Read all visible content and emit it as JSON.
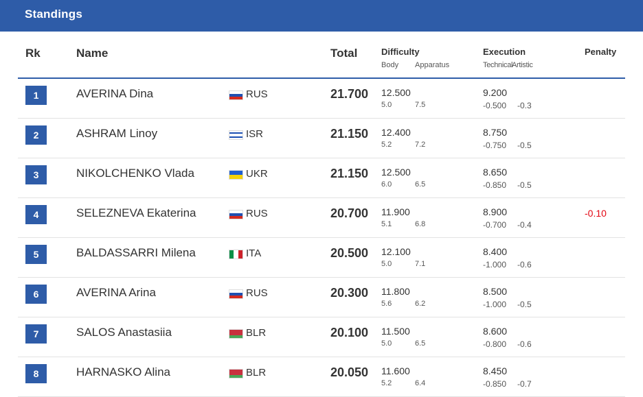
{
  "header": {
    "title": "Standings"
  },
  "columns": {
    "rk": "Rk",
    "name": "Name",
    "total": "Total",
    "difficulty": "Difficulty",
    "body": "Body",
    "apparatus": "Apparatus",
    "execution": "Execution",
    "technical": "Technical",
    "artistic": "Artistic",
    "penalty": "Penalty"
  },
  "colors": {
    "header_bg": "#2e5ca8",
    "rank_bg": "#2e5ca8",
    "penalty": "#e30613"
  },
  "rows": [
    {
      "rank": "1",
      "name": "AVERINA Dina",
      "country": "RUS",
      "flag": "rus-flag",
      "total": "21.700",
      "difficulty": "12.500",
      "body": "5.0",
      "apparatus": "7.5",
      "execution": "9.200",
      "technical": "-0.500",
      "artistic": "-0.3",
      "penalty": ""
    },
    {
      "rank": "2",
      "name": "ASHRAM Linoy",
      "country": "ISR",
      "flag": "isr-flag",
      "total": "21.150",
      "difficulty": "12.400",
      "body": "5.2",
      "apparatus": "7.2",
      "execution": "8.750",
      "technical": "-0.750",
      "artistic": "-0.5",
      "penalty": ""
    },
    {
      "rank": "3",
      "name": "NIKOLCHENKO Vlada",
      "country": "UKR",
      "flag": "ukr-flag",
      "total": "21.150",
      "difficulty": "12.500",
      "body": "6.0",
      "apparatus": "6.5",
      "execution": "8.650",
      "technical": "-0.850",
      "artistic": "-0.5",
      "penalty": ""
    },
    {
      "rank": "4",
      "name": "SELEZNEVA Ekaterina",
      "country": "RUS",
      "flag": "rus-flag",
      "total": "20.700",
      "difficulty": "11.900",
      "body": "5.1",
      "apparatus": "6.8",
      "execution": "8.900",
      "technical": "-0.700",
      "artistic": "-0.4",
      "penalty": "-0.10"
    },
    {
      "rank": "5",
      "name": "BALDASSARRI Milena",
      "country": "ITA",
      "flag": "ita-flag",
      "total": "20.500",
      "difficulty": "12.100",
      "body": "5.0",
      "apparatus": "7.1",
      "execution": "8.400",
      "technical": "-1.000",
      "artistic": "-0.6",
      "penalty": ""
    },
    {
      "rank": "6",
      "name": "AVERINA Arina",
      "country": "RUS",
      "flag": "rus-flag",
      "total": "20.300",
      "difficulty": "11.800",
      "body": "5.6",
      "apparatus": "6.2",
      "execution": "8.500",
      "technical": "-1.000",
      "artistic": "-0.5",
      "penalty": ""
    },
    {
      "rank": "7",
      "name": "SALOS Anastasiia",
      "country": "BLR",
      "flag": "blr-flag",
      "total": "20.100",
      "difficulty": "11.500",
      "body": "5.0",
      "apparatus": "6.5",
      "execution": "8.600",
      "technical": "-0.800",
      "artistic": "-0.6",
      "penalty": ""
    },
    {
      "rank": "8",
      "name": "HARNASKO Alina",
      "country": "BLR",
      "flag": "blr-flag",
      "total": "20.050",
      "difficulty": "11.600",
      "body": "5.2",
      "apparatus": "6.4",
      "execution": "8.450",
      "technical": "-0.850",
      "artistic": "-0.7",
      "penalty": ""
    }
  ]
}
